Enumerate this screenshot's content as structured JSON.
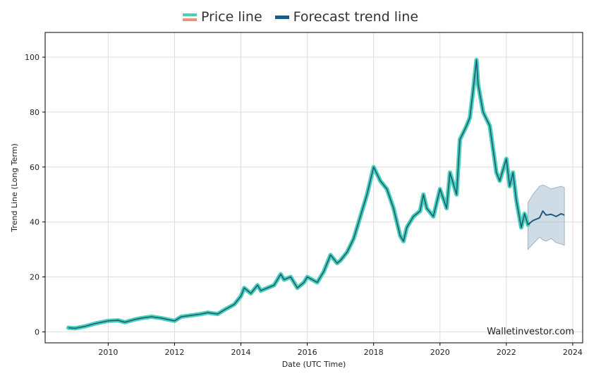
{
  "legend": {
    "price_label": "Price line",
    "forecast_label": "Forecast trend line"
  },
  "colors": {
    "price": "#48d1b4",
    "price_alt": "#f0917a",
    "forecast": "#1e5a80",
    "band": "#a9c0cf",
    "grid": "#dddddd"
  },
  "chart_data": {
    "type": "line",
    "title": "",
    "xlabel": "Date (UTC Time)",
    "ylabel": "Trend Line (Long Term)",
    "xlim": [
      2008.1,
      2024.3
    ],
    "ylim": [
      -4,
      109
    ],
    "x_ticks": [
      2010,
      2012,
      2014,
      2016,
      2018,
      2020,
      2022,
      2024
    ],
    "x_tick_labels": [
      "2010",
      "2012",
      "2014",
      "2016",
      "2018",
      "2020",
      "2022",
      "2024"
    ],
    "y_ticks": [
      0,
      20,
      40,
      60,
      80,
      100
    ],
    "y_tick_labels": [
      "0",
      "20",
      "40",
      "60",
      "80",
      "100"
    ],
    "grid": true,
    "legend_position": "top-center",
    "watermark": "Walletinvestor.com",
    "series": [
      {
        "name": "Price line",
        "x": [
          2008.8,
          2009.0,
          2009.3,
          2009.6,
          2010.0,
          2010.3,
          2010.5,
          2010.8,
          2011.0,
          2011.3,
          2011.6,
          2011.8,
          2012.0,
          2012.2,
          2012.5,
          2012.8,
          2013.0,
          2013.3,
          2013.5,
          2013.8,
          2014.0,
          2014.1,
          2014.3,
          2014.5,
          2014.6,
          2014.8,
          2015.0,
          2015.2,
          2015.3,
          2015.5,
          2015.7,
          2015.9,
          2016.0,
          2016.3,
          2016.5,
          2016.7,
          2016.9,
          2017.0,
          2017.2,
          2017.4,
          2017.6,
          2017.8,
          2018.0,
          2018.2,
          2018.4,
          2018.6,
          2018.8,
          2018.9,
          2019.0,
          2019.2,
          2019.4,
          2019.5,
          2019.6,
          2019.8,
          2020.0,
          2020.2,
          2020.3,
          2020.5,
          2020.6,
          2020.8,
          2020.9,
          2021.0,
          2021.1,
          2021.15,
          2021.3,
          2021.5,
          2021.7,
          2021.8,
          2022.0,
          2022.1,
          2022.2,
          2022.3,
          2022.45,
          2022.55,
          2022.65
        ],
        "values": [
          1.5,
          1.3,
          2.0,
          3.0,
          4.0,
          4.2,
          3.5,
          4.5,
          5.0,
          5.5,
          5.0,
          4.5,
          4.0,
          5.5,
          6.0,
          6.5,
          7.0,
          6.5,
          8.0,
          10.0,
          13.0,
          16.0,
          14.0,
          17.0,
          15.0,
          16.0,
          17.0,
          21.0,
          19.0,
          20.0,
          16.0,
          18.0,
          20.0,
          18.0,
          22.0,
          28.0,
          25.0,
          26.0,
          29.0,
          34.0,
          42.0,
          50.0,
          60.0,
          55.0,
          52.0,
          45.0,
          35.0,
          33.0,
          38.0,
          42.0,
          44.0,
          50.0,
          45.0,
          42.0,
          52.0,
          45.0,
          58.0,
          50.0,
          70.0,
          75.0,
          78.0,
          88.0,
          99.0,
          90.0,
          80.0,
          75.0,
          58.0,
          55.0,
          63.0,
          53.0,
          58.0,
          48.0,
          38.0,
          43.0,
          39.0
        ]
      },
      {
        "name": "Forecast trend line",
        "x": [
          2022.65,
          2022.8,
          2023.0,
          2023.1,
          2023.2,
          2023.35,
          2023.5,
          2023.65,
          2023.75
        ],
        "values": [
          39.0,
          40.5,
          41.5,
          44.0,
          42.5,
          42.8,
          42.0,
          43.0,
          42.5
        ],
        "band_upper": [
          47.0,
          50.0,
          53.0,
          53.5,
          53.0,
          52.0,
          52.5,
          53.0,
          52.5
        ],
        "band_lower": [
          30.0,
          32.0,
          34.5,
          33.5,
          33.0,
          34.0,
          32.5,
          32.0,
          31.5
        ]
      }
    ]
  }
}
